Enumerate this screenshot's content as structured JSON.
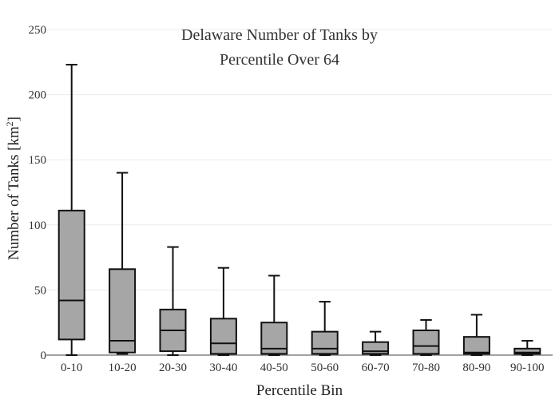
{
  "chart_data": {
    "type": "box",
    "title_lines": [
      "Delaware Number of Tanks by",
      "Percentile Over 64"
    ],
    "xlabel": "Percentile Bin",
    "ylabel_main": "Number of Tanks  [km",
    "ylabel_sup": "2",
    "ylabel_end": "]",
    "ylim": [
      0,
      250
    ],
    "yticks": [
      0,
      50,
      100,
      150,
      200,
      250
    ],
    "ytick_labels": [
      "0",
      "50",
      "100",
      "150",
      "200",
      "250"
    ],
    "grid": true,
    "categories": [
      "0-10",
      "10-20",
      "20-30",
      "30-40",
      "40-50",
      "50-60",
      "60-70",
      "70-80",
      "80-90",
      "90-100"
    ],
    "boxes": [
      {
        "min": 0,
        "q1": 12,
        "median": 42,
        "q3": 111,
        "max": 223
      },
      {
        "min": 1,
        "q1": 2,
        "median": 11,
        "q3": 66,
        "max": 140
      },
      {
        "min": 0,
        "q1": 3,
        "median": 19,
        "q3": 35,
        "max": 83
      },
      {
        "min": 0,
        "q1": 1,
        "median": 9,
        "q3": 28,
        "max": 67
      },
      {
        "min": 0,
        "q1": 1,
        "median": 5,
        "q3": 25,
        "max": 61
      },
      {
        "min": 0,
        "q1": 1,
        "median": 5,
        "q3": 18,
        "max": 41
      },
      {
        "min": 0,
        "q1": 1,
        "median": 3,
        "q3": 10,
        "max": 18
      },
      {
        "min": 0,
        "q1": 1,
        "median": 7,
        "q3": 19,
        "max": 27
      },
      {
        "min": 0,
        "q1": 1,
        "median": 2,
        "q3": 14,
        "max": 31
      },
      {
        "min": 0,
        "q1": 1,
        "median": 2,
        "q3": 5,
        "max": 11
      }
    ]
  }
}
